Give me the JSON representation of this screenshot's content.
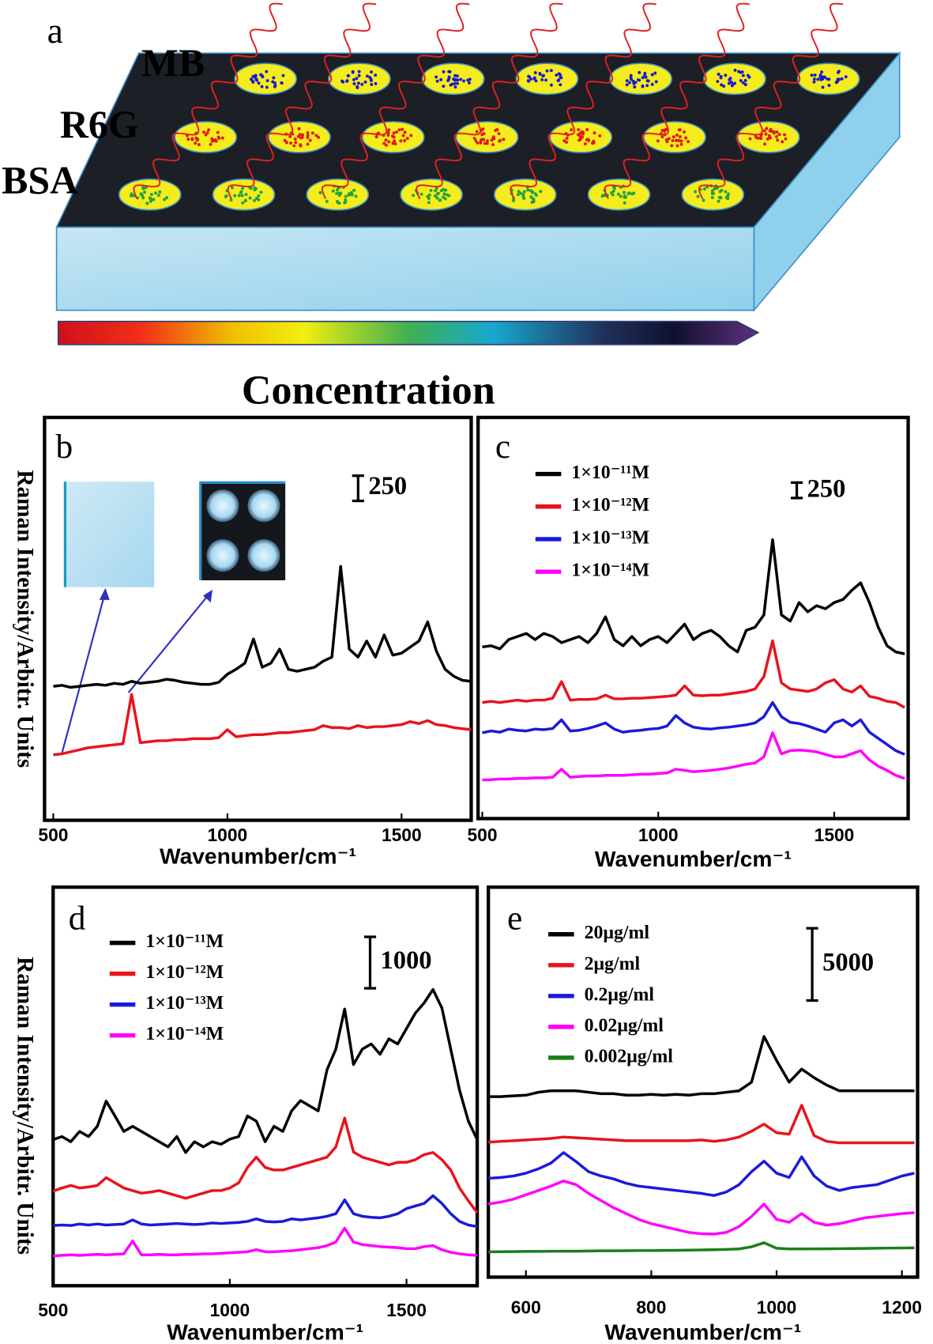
{
  "schematic": {
    "panel_label": "a",
    "rows": [
      "MB",
      "R6G",
      "BSA"
    ],
    "arrow_label": "Concentration"
  },
  "chart_data": [
    {
      "type": "line",
      "panel_label": "b",
      "x_label": "Wavenumber/cm⁻¹",
      "y_label": "Raman Intensity/Arbitr. Units",
      "xlim": [
        475,
        1700
      ],
      "xticks": [
        500,
        1000,
        1500
      ],
      "ylim": [
        0,
        4000
      ],
      "scale_bar": 250,
      "x": [
        500,
        525,
        550,
        575,
        600,
        625,
        650,
        675,
        700,
        725,
        750,
        775,
        800,
        825,
        850,
        875,
        900,
        925,
        950,
        975,
        1000,
        1025,
        1050,
        1075,
        1100,
        1125,
        1150,
        1175,
        1200,
        1225,
        1250,
        1275,
        1300,
        1325,
        1350,
        1375,
        1400,
        1425,
        1450,
        1475,
        1500,
        1525,
        1550,
        1575,
        1600,
        1625,
        1650,
        1675,
        1700
      ],
      "series": [
        {
          "color": "#000000",
          "values": [
            1330,
            1340,
            1320,
            1330,
            1340,
            1350,
            1340,
            1360,
            1350,
            1380,
            1360,
            1370,
            1380,
            1400,
            1390,
            1370,
            1360,
            1350,
            1350,
            1370,
            1450,
            1500,
            1560,
            1800,
            1520,
            1560,
            1700,
            1500,
            1480,
            1500,
            1520,
            1580,
            1620,
            2520,
            1700,
            1620,
            1780,
            1620,
            1840,
            1640,
            1660,
            1720,
            1780,
            1970,
            1680,
            1500,
            1430,
            1390,
            1380
          ]
        },
        {
          "color": "#e8141c",
          "values": [
            650,
            660,
            680,
            700,
            720,
            730,
            740,
            750,
            760,
            1250,
            770,
            780,
            790,
            790,
            800,
            800,
            810,
            810,
            810,
            820,
            900,
            830,
            840,
            850,
            850,
            860,
            870,
            870,
            880,
            890,
            900,
            940,
            920,
            920,
            910,
            940,
            920,
            930,
            930,
            940,
            950,
            980,
            960,
            990,
            950,
            940,
            920,
            910,
            900
          ]
        }
      ]
    },
    {
      "type": "line",
      "panel_label": "c",
      "x_label": "Wavenumber/cm⁻¹",
      "xlim": [
        488,
        1710
      ],
      "xticks": [
        500,
        1000,
        1500
      ],
      "ylim": [
        0,
        6500
      ],
      "scale_bar": 250,
      "x": [
        500,
        525,
        550,
        575,
        600,
        625,
        650,
        675,
        700,
        725,
        750,
        775,
        800,
        825,
        850,
        875,
        900,
        925,
        950,
        975,
        1000,
        1025,
        1050,
        1075,
        1100,
        1125,
        1150,
        1175,
        1200,
        1225,
        1250,
        1275,
        1300,
        1325,
        1350,
        1375,
        1400,
        1425,
        1450,
        1475,
        1500,
        1525,
        1550,
        1575,
        1600,
        1625,
        1650,
        1675,
        1700
      ],
      "series": [
        {
          "name": "1×10⁻¹¹M",
          "color": "#000000",
          "values": [
            2780,
            2800,
            2750,
            2900,
            2950,
            3000,
            2900,
            3000,
            2950,
            2850,
            2900,
            2950,
            2850,
            3000,
            3270,
            2900,
            2800,
            2950,
            2800,
            2900,
            2950,
            2850,
            3000,
            3150,
            2900,
            3000,
            3050,
            2950,
            2800,
            2700,
            3050,
            3100,
            3300,
            4520,
            3300,
            3200,
            3500,
            3350,
            3450,
            3400,
            3500,
            3550,
            3700,
            3820,
            3500,
            3100,
            2800,
            2700,
            2670
          ]
        },
        {
          "name": "1×10⁻¹²M",
          "color": "#e8141c",
          "values": [
            1880,
            1900,
            1880,
            1900,
            1920,
            1900,
            1920,
            1920,
            1950,
            2220,
            1920,
            1930,
            1930,
            1940,
            2000,
            1940,
            1940,
            1950,
            1950,
            1960,
            1970,
            1980,
            2000,
            2150,
            2000,
            1990,
            2000,
            2000,
            2020,
            2040,
            2060,
            2100,
            2300,
            2880,
            2200,
            2100,
            2080,
            2060,
            2100,
            2200,
            2250,
            2100,
            2050,
            2150,
            1980,
            1950,
            1900,
            1880,
            1800
          ]
        },
        {
          "name": "1×10⁻¹³M",
          "color": "#1a1adb",
          "values": [
            1390,
            1420,
            1400,
            1450,
            1430,
            1420,
            1450,
            1440,
            1460,
            1600,
            1420,
            1430,
            1460,
            1500,
            1550,
            1450,
            1400,
            1420,
            1430,
            1450,
            1460,
            1500,
            1670,
            1550,
            1480,
            1460,
            1450,
            1470,
            1480,
            1500,
            1520,
            1550,
            1650,
            1880,
            1650,
            1560,
            1540,
            1500,
            1450,
            1400,
            1550,
            1600,
            1500,
            1600,
            1400,
            1300,
            1200,
            1100,
            1040
          ]
        },
        {
          "name": "1×10⁻¹⁴M",
          "color": "#ff00ff",
          "values": [
            625,
            630,
            640,
            640,
            650,
            650,
            660,
            660,
            670,
            800,
            670,
            680,
            690,
            690,
            700,
            700,
            700,
            710,
            720,
            720,
            730,
            740,
            800,
            780,
            760,
            770,
            780,
            800,
            820,
            850,
            880,
            900,
            1000,
            1390,
            1050,
            1100,
            1110,
            1100,
            1080,
            1040,
            1000,
            1000,
            1050,
            1100,
            950,
            850,
            780,
            700,
            650
          ]
        }
      ]
    },
    {
      "type": "line",
      "panel_label": "d",
      "x_label": "Wavenumber/cm⁻¹",
      "y_label": "Raman Intensity/Arbitr. Units",
      "xlim": [
        500,
        1700
      ],
      "xticks": [
        500,
        1000,
        1500
      ],
      "ylim": [
        0,
        7750
      ],
      "scale_bar": 1000,
      "x": [
        500,
        525,
        550,
        575,
        600,
        625,
        650,
        675,
        700,
        725,
        750,
        775,
        800,
        825,
        850,
        875,
        900,
        925,
        950,
        975,
        1000,
        1025,
        1050,
        1075,
        1100,
        1125,
        1150,
        1175,
        1200,
        1225,
        1250,
        1275,
        1300,
        1325,
        1350,
        1375,
        1400,
        1425,
        1450,
        1475,
        1500,
        1525,
        1550,
        1575,
        1600,
        1625,
        1650,
        1675,
        1700
      ],
      "series": [
        {
          "name": "1×10⁻¹¹M",
          "color": "#000000",
          "values": [
            2840,
            2900,
            2800,
            3000,
            2900,
            3100,
            3590,
            3300,
            3000,
            3100,
            3000,
            2900,
            2800,
            2700,
            2900,
            2590,
            2800,
            2700,
            2800,
            2750,
            2850,
            2900,
            3300,
            3200,
            2800,
            3100,
            3000,
            3400,
            3600,
            3500,
            3400,
            4200,
            4600,
            5380,
            4300,
            4600,
            4700,
            4500,
            4800,
            4700,
            5000,
            5300,
            5500,
            5760,
            5400,
            4600,
            3800,
            3200,
            2840
          ]
        },
        {
          "name": "1×10⁻¹²M",
          "color": "#e8141c",
          "values": [
            1840,
            1900,
            1950,
            1900,
            1920,
            1950,
            2100,
            2000,
            1900,
            1850,
            1800,
            1820,
            1850,
            1800,
            1750,
            1700,
            1750,
            1800,
            1850,
            1850,
            1900,
            2000,
            2300,
            2500,
            2300,
            2250,
            2250,
            2300,
            2350,
            2400,
            2450,
            2500,
            2700,
            3260,
            2600,
            2500,
            2450,
            2400,
            2350,
            2400,
            2400,
            2450,
            2550,
            2590,
            2450,
            2250,
            1900,
            1650,
            1420
          ]
        },
        {
          "name": "1×10⁻¹³M",
          "color": "#1a1adb",
          "values": [
            1170,
            1180,
            1170,
            1200,
            1180,
            1200,
            1180,
            1190,
            1200,
            1280,
            1200,
            1180,
            1190,
            1200,
            1210,
            1200,
            1190,
            1200,
            1220,
            1210,
            1220,
            1230,
            1250,
            1300,
            1250,
            1240,
            1250,
            1300,
            1280,
            1300,
            1320,
            1350,
            1400,
            1670,
            1400,
            1350,
            1330,
            1320,
            1350,
            1400,
            1500,
            1550,
            1600,
            1750,
            1600,
            1400,
            1250,
            1180,
            1150
          ]
        },
        {
          "name": "1×10⁻¹⁴M",
          "color": "#ff00ff",
          "values": [
            580,
            590,
            600,
            590,
            600,
            610,
            600,
            610,
            620,
            870,
            600,
            600,
            610,
            600,
            600,
            610,
            610,
            620,
            620,
            630,
            640,
            650,
            660,
            700,
            660,
            660,
            670,
            680,
            700,
            720,
            740,
            780,
            850,
            1120,
            850,
            800,
            780,
            760,
            750,
            740,
            720,
            720,
            760,
            780,
            700,
            650,
            620,
            600,
            590
          ]
        }
      ]
    },
    {
      "type": "line",
      "panel_label": "e",
      "x_label": "Wavenumber/cm⁻¹",
      "xlim": [
        540,
        1225
      ],
      "xticks": [
        600,
        800,
        1000,
        1200
      ],
      "ylim": [
        0,
        27000
      ],
      "scale_bar": 5000,
      "x": [
        540,
        560,
        580,
        600,
        620,
        640,
        660,
        680,
        700,
        720,
        740,
        760,
        780,
        800,
        820,
        840,
        860,
        880,
        900,
        920,
        940,
        960,
        980,
        1000,
        1020,
        1040,
        1060,
        1080,
        1100,
        1120,
        1140,
        1160,
        1180,
        1200,
        1220
      ],
      "series": [
        {
          "name": "20μg/ml",
          "color": "#000000",
          "values": [
            12500,
            12500,
            12550,
            12600,
            12800,
            12900,
            12900,
            12900,
            12800,
            12700,
            12700,
            12600,
            12600,
            12650,
            12600,
            12650,
            12600,
            12700,
            12700,
            12800,
            12900,
            13500,
            16660,
            15000,
            13500,
            14400,
            13800,
            13300,
            12900,
            12900,
            12900,
            12900,
            12900,
            12900,
            12900
          ]
        },
        {
          "name": "2μg/ml",
          "color": "#e8141c",
          "values": [
            9340,
            9400,
            9450,
            9500,
            9550,
            9600,
            9700,
            9650,
            9600,
            9550,
            9500,
            9450,
            9450,
            9450,
            9450,
            9450,
            9450,
            9500,
            9400,
            9500,
            9700,
            10100,
            10590,
            10000,
            9900,
            11900,
            9800,
            9400,
            9300,
            9300,
            9300,
            9300,
            9300,
            9300,
            9300
          ]
        },
        {
          "name": "0.2μg/ml",
          "color": "#1a1adb",
          "values": [
            6840,
            6900,
            7000,
            7200,
            7500,
            7900,
            8620,
            8000,
            7300,
            7000,
            6800,
            6500,
            6300,
            6200,
            6100,
            6000,
            5900,
            5800,
            5650,
            5900,
            6400,
            7300,
            8030,
            7200,
            6900,
            8330,
            7000,
            6300,
            6000,
            6200,
            6300,
            6400,
            6700,
            7000,
            7200
          ]
        },
        {
          "name": "0.02μg/ml",
          "color": "#ff00ff",
          "values": [
            5060,
            5200,
            5400,
            5700,
            6000,
            6300,
            6660,
            6400,
            5800,
            5300,
            4800,
            4400,
            4000,
            3700,
            3500,
            3300,
            3100,
            3000,
            2980,
            3100,
            3500,
            4200,
            5060,
            4000,
            3800,
            4400,
            3800,
            3600,
            3700,
            3900,
            4100,
            4200,
            4300,
            4400,
            4460
          ]
        },
        {
          "name": "0.002μg/ml",
          "color": "#1a7f1a",
          "values": [
            1750,
            1760,
            1770,
            1780,
            1780,
            1790,
            1800,
            1800,
            1810,
            1820,
            1820,
            1830,
            1840,
            1840,
            1850,
            1860,
            1870,
            1880,
            1900,
            1920,
            1950,
            2100,
            2380,
            2000,
            1950,
            1950,
            1960,
            1960,
            1970,
            1980,
            1990,
            2000,
            2010,
            2020,
            2030
          ]
        }
      ]
    }
  ]
}
